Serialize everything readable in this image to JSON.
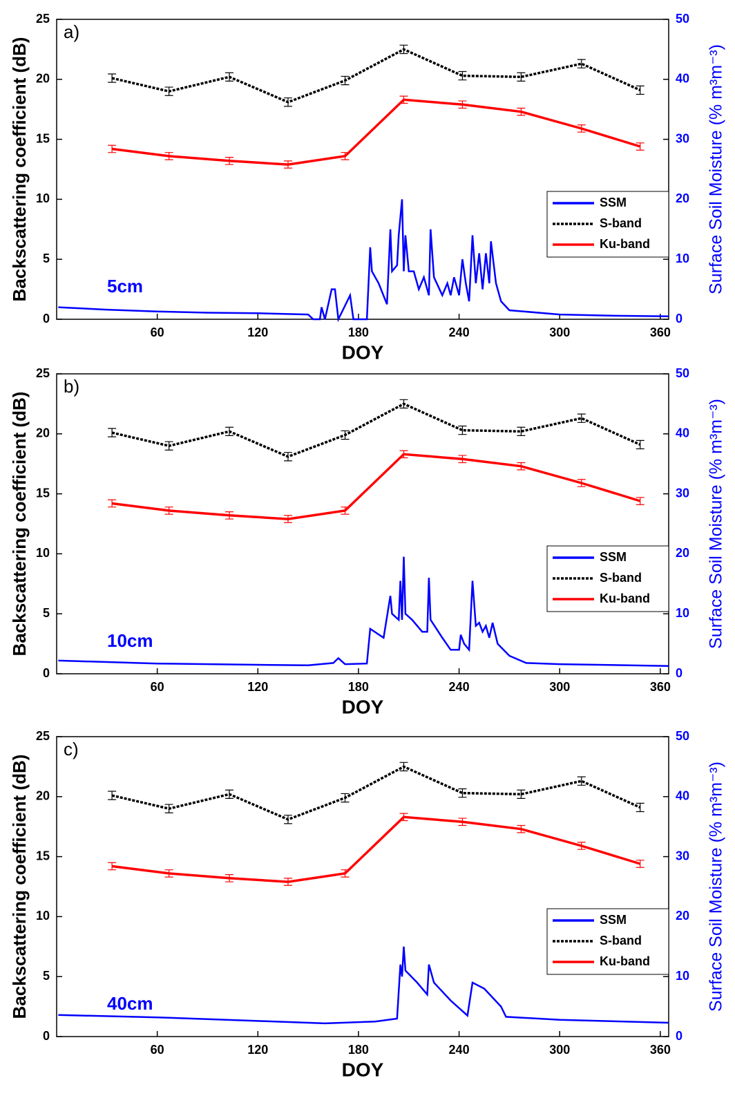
{
  "chart_data": [
    {
      "type": "line",
      "label": "a)",
      "annotation": "5cm",
      "xlabel": "DOY",
      "ylabel": "Backscattering coefficient (dB)",
      "y2label": "Surface Soil Moisture (% m³m⁻³)",
      "xlim": [
        0,
        365
      ],
      "xticks": [
        60,
        120,
        180,
        240,
        300,
        360
      ],
      "ylim": [
        0,
        25
      ],
      "yticks": [
        0,
        5,
        10,
        15,
        20,
        25
      ],
      "y2lim": [
        0,
        50
      ],
      "y2ticks": [
        0,
        10,
        20,
        30,
        40,
        50
      ],
      "legend": "right",
      "series": [
        {
          "name": "SSM",
          "color": "#0000ff",
          "axis": "y2",
          "linestyle": "solid",
          "x": [
            1,
            30,
            60,
            90,
            120,
            150,
            153,
            157,
            158,
            160,
            164,
            166,
            168,
            175,
            177,
            180,
            185,
            187,
            188,
            192,
            197,
            199,
            200,
            203,
            204,
            206,
            207,
            208,
            210,
            213,
            216,
            219,
            222,
            223,
            225,
            230,
            233,
            235,
            237,
            240,
            242,
            244,
            246,
            248,
            250,
            252,
            254,
            256,
            258,
            259,
            262,
            265,
            270,
            300,
            330,
            365
          ],
          "values": [
            2.0,
            1.6,
            1.3,
            1.1,
            1.0,
            0.8,
            0,
            0,
            2,
            0,
            5,
            5,
            0,
            4,
            0,
            0,
            0,
            12,
            8,
            6,
            2.5,
            15,
            8,
            9,
            14,
            20,
            8,
            14,
            8,
            8,
            5,
            7,
            4,
            15,
            7,
            4,
            6,
            4,
            7,
            4,
            10,
            6,
            3,
            14,
            6,
            11,
            5,
            11,
            6,
            13,
            6,
            3,
            1.5,
            0.8,
            0.6,
            0.5
          ]
        },
        {
          "name": "S-band",
          "color": "#000000",
          "linestyle": "dashed",
          "x": [
            33,
            67,
            103,
            138,
            172,
            207,
            242,
            277,
            313,
            348
          ],
          "values": [
            20.1,
            19.0,
            20.2,
            18.1,
            19.9,
            22.5,
            20.3,
            20.2,
            21.3,
            19.1
          ],
          "errors": [
            0.35,
            0.35,
            0.35,
            0.35,
            0.35,
            0.35,
            0.35,
            0.35,
            0.35,
            0.35
          ]
        },
        {
          "name": "Ku-band",
          "color": "#ff0000",
          "linestyle": "solid",
          "x": [
            33,
            67,
            103,
            138,
            172,
            207,
            242,
            277,
            313,
            348
          ],
          "values": [
            14.2,
            13.6,
            13.2,
            12.9,
            13.6,
            18.3,
            17.9,
            17.3,
            15.9,
            14.4
          ],
          "errors": [
            0.3,
            0.3,
            0.3,
            0.3,
            0.3,
            0.3,
            0.3,
            0.3,
            0.3,
            0.3
          ]
        }
      ]
    },
    {
      "type": "line",
      "label": "b)",
      "annotation": "10cm",
      "xlabel": "DOY",
      "ylabel": "Backscattering coefficient (dB)",
      "y2label": "Surface Soil Moisture (% m³m⁻³)",
      "xlim": [
        0,
        365
      ],
      "xticks": [
        60,
        120,
        180,
        240,
        300,
        360
      ],
      "ylim": [
        0,
        25
      ],
      "yticks": [
        0,
        5,
        10,
        15,
        20,
        25
      ],
      "y2lim": [
        0,
        50
      ],
      "y2ticks": [
        0,
        10,
        20,
        30,
        40,
        50
      ],
      "legend": "right",
      "series": [
        {
          "name": "SSM",
          "color": "#0000ff",
          "axis": "y2",
          "linestyle": "solid",
          "x": [
            1,
            60,
            120,
            150,
            165,
            168,
            172,
            185,
            187,
            195,
            199,
            200,
            204,
            205,
            206,
            207,
            208,
            212,
            218,
            221,
            222,
            223,
            230,
            235,
            240,
            241,
            243,
            246,
            248,
            250,
            252,
            254,
            256,
            258,
            260,
            263,
            270,
            280,
            300,
            365
          ],
          "values": [
            2.2,
            1.7,
            1.5,
            1.4,
            1.8,
            2.6,
            1.6,
            1.7,
            7.5,
            6,
            13,
            10,
            9,
            15.5,
            9,
            19.5,
            10,
            9,
            7,
            7,
            16,
            9,
            6,
            4,
            4,
            6.5,
            5,
            4,
            15.5,
            8,
            8.5,
            7,
            8,
            6,
            8.5,
            5,
            3,
            1.8,
            1.6,
            1.3
          ]
        },
        {
          "name": "S-band",
          "color": "#000000",
          "linestyle": "dashed",
          "x": [
            33,
            67,
            103,
            138,
            172,
            207,
            242,
            277,
            313,
            348
          ],
          "values": [
            20.1,
            19.0,
            20.2,
            18.1,
            19.9,
            22.5,
            20.3,
            20.2,
            21.3,
            19.1
          ],
          "errors": [
            0.35,
            0.35,
            0.35,
            0.35,
            0.35,
            0.35,
            0.35,
            0.35,
            0.35,
            0.35
          ]
        },
        {
          "name": "Ku-band",
          "color": "#ff0000",
          "linestyle": "solid",
          "x": [
            33,
            67,
            103,
            138,
            172,
            207,
            242,
            277,
            313,
            348
          ],
          "values": [
            14.2,
            13.6,
            13.2,
            12.9,
            13.6,
            18.3,
            17.9,
            17.3,
            15.9,
            14.4
          ],
          "errors": [
            0.3,
            0.3,
            0.3,
            0.3,
            0.3,
            0.3,
            0.3,
            0.3,
            0.3,
            0.3
          ]
        }
      ]
    },
    {
      "type": "line",
      "label": "c)",
      "annotation": "40cm",
      "xlabel": "DOY",
      "ylabel": "Backscattering coefficient (dB)",
      "y2label": "Surface Soil Moisture (% m³m⁻³)",
      "xlim": [
        0,
        365
      ],
      "xticks": [
        60,
        120,
        180,
        240,
        300,
        360
      ],
      "ylim": [
        0,
        25
      ],
      "yticks": [
        0,
        5,
        10,
        15,
        20,
        25
      ],
      "y2lim": [
        0,
        50
      ],
      "y2ticks": [
        0,
        10,
        20,
        30,
        40,
        50
      ],
      "legend": "right",
      "series": [
        {
          "name": "SSM",
          "color": "#0000ff",
          "axis": "y2",
          "linestyle": "solid",
          "x": [
            1,
            60,
            120,
            160,
            190,
            203,
            205,
            206,
            207,
            208,
            215,
            221,
            222,
            225,
            235,
            245,
            248,
            255,
            265,
            268,
            300,
            365
          ],
          "values": [
            3.6,
            3.2,
            2.6,
            2.2,
            2.5,
            3,
            12,
            10,
            15,
            11,
            9,
            7,
            12,
            9,
            6,
            3.5,
            9,
            8,
            5,
            3.3,
            2.8,
            2.3
          ]
        },
        {
          "name": "S-band",
          "color": "#000000",
          "linestyle": "dashed",
          "x": [
            33,
            67,
            103,
            138,
            172,
            207,
            242,
            277,
            313,
            348
          ],
          "values": [
            20.1,
            19.0,
            20.2,
            18.1,
            19.9,
            22.5,
            20.3,
            20.2,
            21.3,
            19.1
          ],
          "errors": [
            0.35,
            0.35,
            0.35,
            0.35,
            0.35,
            0.35,
            0.35,
            0.35,
            0.35,
            0.35
          ]
        },
        {
          "name": "Ku-band",
          "color": "#ff0000",
          "linestyle": "solid",
          "x": [
            33,
            67,
            103,
            138,
            172,
            207,
            242,
            277,
            313,
            348
          ],
          "values": [
            14.2,
            13.6,
            13.2,
            12.9,
            13.6,
            18.3,
            17.9,
            17.3,
            15.9,
            14.4
          ],
          "errors": [
            0.3,
            0.3,
            0.3,
            0.3,
            0.3,
            0.3,
            0.3,
            0.3,
            0.3,
            0.3
          ]
        }
      ]
    }
  ]
}
